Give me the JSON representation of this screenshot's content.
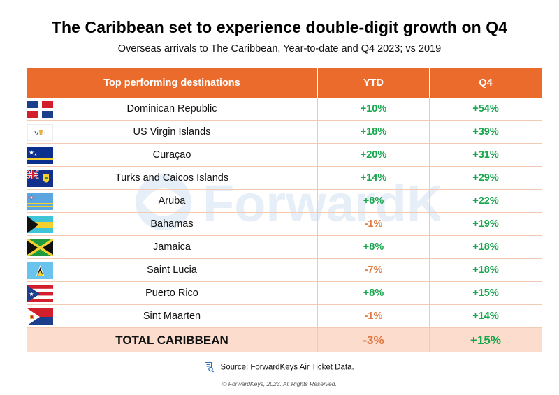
{
  "title": "The Caribbean set to experience double-digit growth on Q4",
  "subtitle": "Overseas arrivals to The Caribbean, Year-to-date and Q4 2023; vs 2019",
  "watermark_text": "ForwardKeys",
  "headers": {
    "destination": "Top performing destinations",
    "ytd": "YTD",
    "q4": "Q4"
  },
  "rows": [
    {
      "name": "Dominican Republic",
      "ytd": "+10%",
      "q4": "+54%",
      "flag_icon": "dominican-republic-flag-icon"
    },
    {
      "name": "US Virgin Islands",
      "ytd": "+18%",
      "q4": "+39%",
      "flag_icon": "us-virgin-islands-flag-icon"
    },
    {
      "name": "Curaçao",
      "ytd": "+20%",
      "q4": "+31%",
      "flag_icon": "curacao-flag-icon"
    },
    {
      "name": "Turks and Caicos Islands",
      "ytd": "+14%",
      "q4": "+29%",
      "flag_icon": "turks-caicos-flag-icon"
    },
    {
      "name": "Aruba",
      "ytd": "+8%",
      "q4": "+22%",
      "flag_icon": "aruba-flag-icon"
    },
    {
      "name": "Bahamas",
      "ytd": "-1%",
      "q4": "+19%",
      "flag_icon": "bahamas-flag-icon"
    },
    {
      "name": "Jamaica",
      "ytd": "+8%",
      "q4": "+18%",
      "flag_icon": "jamaica-flag-icon"
    },
    {
      "name": "Saint Lucia",
      "ytd": "-7%",
      "q4": "+18%",
      "flag_icon": "saint-lucia-flag-icon"
    },
    {
      "name": "Puerto Rico",
      "ytd": "+8%",
      "q4": "+15%",
      "flag_icon": "puerto-rico-flag-icon"
    },
    {
      "name": "Sint Maarten",
      "ytd": "-1%",
      "q4": "+14%",
      "flag_icon": "sint-maarten-flag-icon"
    }
  ],
  "total": {
    "name": "TOTAL CARIBBEAN",
    "ytd": "-3%",
    "q4": "+15%"
  },
  "source": "Source: ForwardKeys Air Ticket Data.",
  "copyright": "© ForwardKeys, 2023. All Rights Reserved.",
  "colors": {
    "header_bg": "#ea6b2c",
    "positive": "#1aa64f",
    "negative": "#e07a44",
    "total_bg": "#fbdccd"
  },
  "chart_data": {
    "type": "table",
    "title": "The Caribbean set to experience double-digit growth on Q4",
    "subtitle": "Overseas arrivals to The Caribbean, Year-to-date and Q4 2023; vs 2019",
    "columns": [
      "Top performing destinations",
      "YTD",
      "Q4"
    ],
    "categories": [
      "Dominican Republic",
      "US Virgin Islands",
      "Curaçao",
      "Turks and Caicos Islands",
      "Aruba",
      "Bahamas",
      "Jamaica",
      "Saint Lucia",
      "Puerto Rico",
      "Sint Maarten",
      "TOTAL CARIBBEAN"
    ],
    "series": [
      {
        "name": "YTD",
        "values": [
          10,
          18,
          20,
          14,
          8,
          -1,
          8,
          -7,
          8,
          -1,
          -3
        ]
      },
      {
        "name": "Q4",
        "values": [
          54,
          39,
          31,
          29,
          22,
          19,
          18,
          18,
          15,
          14,
          15
        ]
      }
    ]
  }
}
